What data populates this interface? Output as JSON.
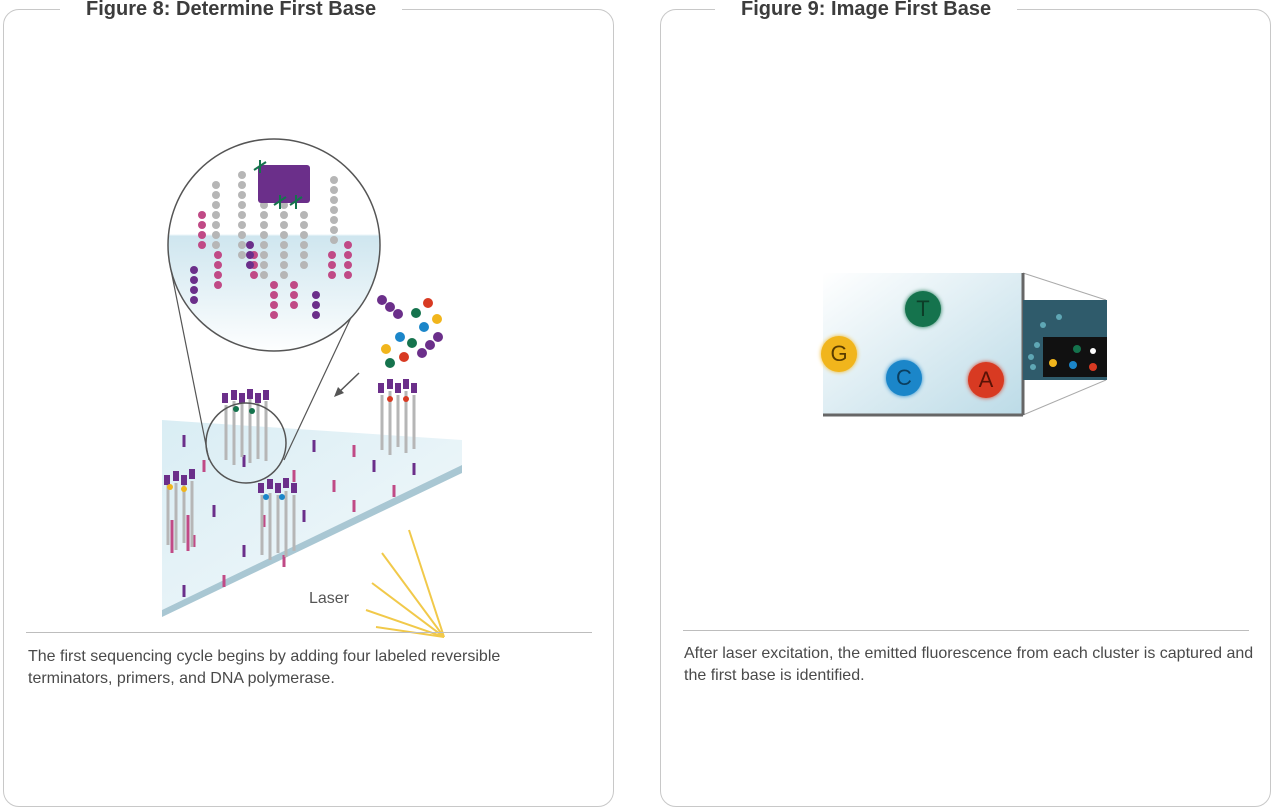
{
  "figure8": {
    "title": "Figure 8: Determine First Base",
    "laser_label": "Laser",
    "caption": "The first sequencing cycle begins by adding four labeled reversible terminators, primers, and DNA polymerase."
  },
  "figure9": {
    "title": "Figure 9: Image First Base",
    "bases": [
      "T",
      "G",
      "C",
      "A"
    ],
    "caption": "After laser excitation, the emitted fluorescence from each cluster is captured and the first base is identified."
  },
  "colors": {
    "T": "#15734d",
    "G": "#f1b51c",
    "C": "#1b86c9",
    "A": "#d83a22",
    "purple": "#6b2f8a",
    "pink": "#c04a86",
    "gray": "#b6b6b6",
    "flowcell": "#cde5ee"
  }
}
